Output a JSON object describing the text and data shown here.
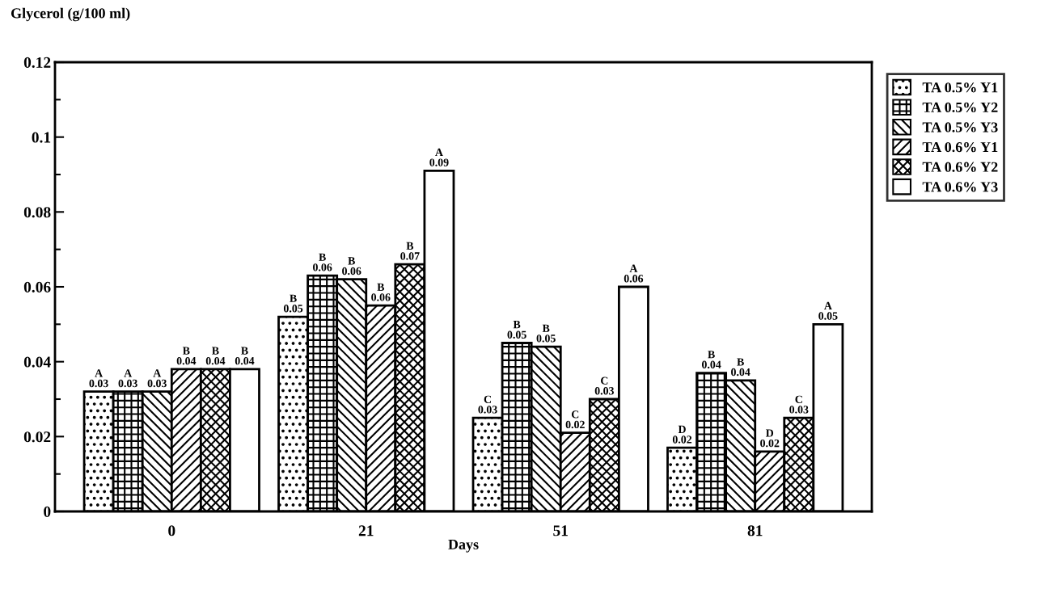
{
  "chart_data": {
    "type": "bar",
    "ylabel": "Glycerol (g/100 ml)",
    "xlabel": "Days",
    "categories": [
      "0",
      "21",
      "51",
      "81"
    ],
    "series": [
      {
        "name": "TA 0.5% Y1",
        "color": "#000000",
        "values": [
          0.032,
          0.052,
          0.025,
          0.017
        ],
        "value_labels": [
          "A\n0.03",
          "B\n0.05",
          "C\n0.03",
          "D\n0.02"
        ]
      },
      {
        "name": "TA 0.5% Y2",
        "color": "#000000",
        "values": [
          0.032,
          0.063,
          0.045,
          0.037
        ],
        "value_labels": [
          "A\n0.03",
          "B\n0.06",
          "B\n0.05",
          "B\n0.04"
        ]
      },
      {
        "name": "TA 0.5% Y3",
        "color": "#000000",
        "values": [
          0.032,
          0.062,
          0.044,
          0.035
        ],
        "value_labels": [
          "A\n0.03",
          "B\n0.06",
          "B\n0.05",
          "B\n0.04"
        ]
      },
      {
        "name": "TA 0.6% Y1",
        "color": "#000000",
        "values": [
          0.038,
          0.055,
          0.021,
          0.016
        ],
        "value_labels": [
          "B\n0.04",
          "B\n0.06",
          "C\n0.02",
          "D\n0.02"
        ]
      },
      {
        "name": "TA 0.6% Y2",
        "color": "#000000",
        "values": [
          0.038,
          0.066,
          0.03,
          0.025
        ],
        "value_labels": [
          "B\n0.04",
          "B\n0.07",
          "C\n0.03",
          "C\n0.03"
        ]
      },
      {
        "name": "TA 0.6% Y3",
        "color": "#000000",
        "values": [
          0.038,
          0.091,
          0.06,
          0.05
        ],
        "value_labels": [
          "B\n0.04",
          "A\n0.09",
          "A\n0.06",
          "A\n0.05"
        ]
      }
    ],
    "ylim": [
      0,
      0.12
    ],
    "yticks": [
      0,
      0.02,
      0.04,
      0.06,
      0.08,
      0.1,
      0.12
    ],
    "legend": "right",
    "grid": false
  }
}
